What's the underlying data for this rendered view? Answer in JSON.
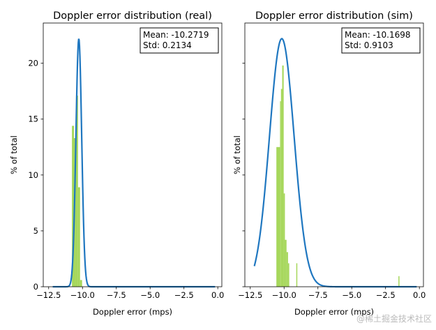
{
  "chart_data": [
    {
      "type": "bar",
      "title": "Doppler error distribution (real)",
      "xlabel": "Doppler error (mps)",
      "ylabel": "% of total",
      "xlim": [
        -12.9,
        0.3
      ],
      "ylim": [
        0,
        23.6
      ],
      "xticks": [
        "−12.5",
        "−10.0",
        "−7.5",
        "−5.0",
        "−2.5",
        "0.0"
      ],
      "xtick_values": [
        -12.5,
        -10.0,
        -7.5,
        -5.0,
        -2.5,
        0.0
      ],
      "yticks": [
        "0",
        "5",
        "10",
        "15",
        "20"
      ],
      "ytick_values": [
        0,
        5,
        10,
        15,
        20
      ],
      "histogram": {
        "bin_edges": [
          -10.78,
          -10.63,
          -10.48,
          -10.33,
          -10.18,
          -10.03
        ],
        "values": [
          14.4,
          13.3,
          17.1,
          8.9,
          0.6
        ],
        "color": "#a6d75b"
      },
      "fit_curve": {
        "mean": -10.2719,
        "std": 0.2134,
        "peak": 22.2,
        "x_range": [
          -12.2,
          -0.2
        ],
        "color": "#1f77c0"
      },
      "legend": {
        "placement": "top-right",
        "lines": [
          "Mean: -10.2719",
          "Std: 0.2134"
        ]
      }
    },
    {
      "type": "bar",
      "title": "Doppler error distribution (sim)",
      "xlabel": "Doppler error (mps)",
      "ylabel": "% of total",
      "xlim": [
        -12.9,
        0.3
      ],
      "ylim": [
        0,
        23.6
      ],
      "xticks": [
        "−12.5",
        "−10.0",
        "−7.5",
        "−5.0",
        "−2.5",
        "0.0"
      ],
      "xtick_values": [
        -12.5,
        -10.0,
        -7.5,
        -5.0,
        -2.5,
        0.0
      ],
      "yticks": [],
      "ytick_values": [
        0,
        5,
        10,
        15,
        20
      ],
      "histogram": {
        "bin_edges": [
          -10.57,
          -10.3,
          -10.23,
          -10.14,
          -10.03,
          -9.94,
          -9.82,
          -9.71,
          -9.62
        ],
        "values": [
          12.5,
          16.6,
          17.7,
          19.8,
          8.35,
          4.2,
          3.1,
          2.1
        ],
        "extra_bars": [
          {
            "x": -9.1,
            "width": 0.06,
            "value": 2.1
          },
          {
            "x": -1.55,
            "width": 0.06,
            "value": 0.95
          }
        ],
        "color": "#a6d75b"
      },
      "fit_curve": {
        "mean": -10.1698,
        "std": 0.9103,
        "peak": 22.2,
        "x_range": [
          -12.2,
          -0.2
        ],
        "color": "#1f77c0"
      },
      "legend": {
        "placement": "top-right",
        "lines": [
          "Mean: -10.1698",
          "Std: 0.9103"
        ]
      }
    }
  ],
  "watermark": "@稀土掘金技术社区"
}
